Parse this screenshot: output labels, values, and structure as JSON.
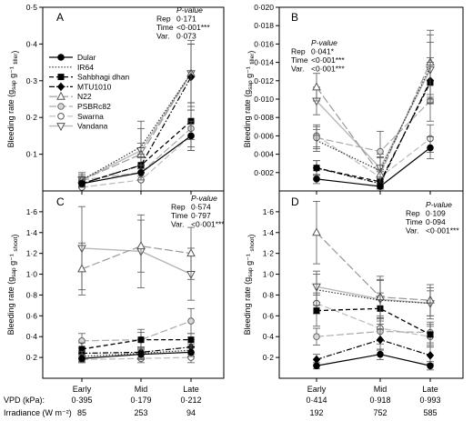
{
  "figure": {
    "row_labels": {
      "vpd": "VPD (kPa):",
      "irradiance": "Irradiance (W m⁻²)"
    },
    "vpd_values": [
      "0·395",
      "0·179",
      "0·212",
      "0·414",
      "0·918",
      "0·993"
    ],
    "irradiance_values": [
      "85",
      "253",
      "94",
      "192",
      "752",
      "585"
    ]
  },
  "legend": {
    "entries": [
      {
        "name": "Dular",
        "marker": "circle-filled",
        "dash": "solid"
      },
      {
        "name": "IR64",
        "marker": "none",
        "dash": "dotted"
      },
      {
        "name": "Sahbhagi dhan",
        "marker": "square-filled",
        "dash": "dashed"
      },
      {
        "name": "MTU1010",
        "marker": "diamond-filled",
        "dash": "dashdot"
      },
      {
        "name": "N22",
        "marker": "triangle-open",
        "dash": "longdash"
      },
      {
        "name": "PSBRc82",
        "marker": "circle-dotted",
        "dash": "longdash"
      },
      {
        "name": "Swarna",
        "marker": "circle-open",
        "dash": "longdash"
      },
      {
        "name": "Vandana",
        "marker": "triangle-down-open",
        "dash": "solid-light"
      }
    ]
  },
  "chart_data": [
    {
      "panel": "A",
      "type": "line",
      "ylabel": "Bleeding rate (g_sap g⁻¹ _tiller)",
      "ylim": [
        0,
        0.5
      ],
      "yticks": [
        "0·1",
        "0·2",
        "0·3",
        "0·4",
        "0·5"
      ],
      "categories": [
        "Early",
        "Mid",
        "Late"
      ],
      "stats": [
        [
          "P-value",
          ""
        ],
        [
          "Rep",
          "0·171"
        ],
        [
          "Time",
          "<0·001***"
        ],
        [
          "Var.",
          "0·073"
        ]
      ],
      "series": [
        {
          "name": "Dular",
          "values": [
            0.02,
            0.05,
            0.15
          ]
        },
        {
          "name": "IR64",
          "values": [
            0.03,
            0.12,
            0.32
          ]
        },
        {
          "name": "Sahbhagi dhan",
          "values": [
            0.02,
            0.07,
            0.19
          ]
        },
        {
          "name": "MTU1010",
          "values": [
            0.02,
            0.07,
            0.31
          ]
        },
        {
          "name": "N22",
          "values": [
            0.03,
            0.1,
            0.32
          ]
        },
        {
          "name": "PSBRc82",
          "values": [
            0.03,
            0.05,
            0.17
          ]
        },
        {
          "name": "Swarna",
          "values": [
            0.01,
            0.03,
            0.15
          ]
        },
        {
          "name": "Vandana",
          "values": [
            0.03,
            0.11,
            0.32
          ]
        }
      ],
      "errors": [
        [
          0.008,
          0.02,
          0.04
        ],
        [
          0.015,
          0.05,
          0.08
        ],
        [
          0.01,
          0.03,
          0.05
        ],
        [
          0.01,
          0.02,
          0.09
        ],
        [
          0.01,
          0.03,
          0.08
        ],
        [
          0.01,
          0.02,
          0.05
        ],
        [
          0.01,
          0.03,
          0.04
        ],
        [
          0.02,
          0.08,
          0.09
        ]
      ]
    },
    {
      "panel": "B",
      "type": "line",
      "ylabel": "Bleeding rate (g_sap g⁻¹ _tiller)",
      "ylim": [
        0,
        0.02
      ],
      "yticks": [
        "0·002",
        "0·004",
        "0·006",
        "0·008",
        "0·010",
        "0·012",
        "0·014",
        "0·016",
        "0·018",
        "0·020"
      ],
      "categories": [
        "Early",
        "Mid",
        "Late"
      ],
      "stats": [
        [
          "P-value",
          ""
        ],
        [
          "Rep",
          "0·041*"
        ],
        [
          "Time",
          "<0·001***"
        ],
        [
          "Var.",
          "<0·001***"
        ]
      ],
      "series": [
        {
          "name": "Dular",
          "values": [
            0.0013,
            0.0005,
            0.0047
          ]
        },
        {
          "name": "IR64",
          "values": [
            0.0055,
            0.0022,
            0.0135
          ]
        },
        {
          "name": "Sahbhagi dhan",
          "values": [
            0.0025,
            0.001,
            0.0118
          ]
        },
        {
          "name": "MTU1010",
          "values": [
            0.0025,
            0.0008,
            0.012
          ]
        },
        {
          "name": "N22",
          "values": [
            0.0113,
            0.0018,
            0.014
          ]
        },
        {
          "name": "PSBRc82",
          "values": [
            0.0058,
            0.0043,
            0.0098
          ]
        },
        {
          "name": "Swarna",
          "values": [
            0.006,
            0.0015,
            0.0057
          ]
        },
        {
          "name": "Vandana",
          "values": [
            0.0098,
            0.0025,
            0.0132
          ]
        }
      ],
      "errors": [
        [
          0.0005,
          0.0003,
          0.0012
        ],
        [
          0.0012,
          0.0015,
          0.0035
        ],
        [
          0.0008,
          0.0005,
          0.0022
        ],
        [
          0.0008,
          0.0005,
          0.0025
        ],
        [
          0.0015,
          0.0018,
          0.0035
        ],
        [
          0.0012,
          0.0022,
          0.0022
        ],
        [
          0.0012,
          0.0008,
          0.0015
        ],
        [
          0.0015,
          0.0015,
          0.003
        ]
      ]
    },
    {
      "panel": "C",
      "type": "line",
      "ylabel": "Bleeding rate (g_sap g⁻¹ _shoot)",
      "ylim": [
        0,
        1.8
      ],
      "yticks": [
        "0·2",
        "0·4",
        "0·6",
        "0·8",
        "1·0",
        "1·2",
        "1·4",
        "1·6"
      ],
      "categories": [
        "Early",
        "Mid",
        "Late"
      ],
      "stats": [
        [
          "P-value",
          ""
        ],
        [
          "Rep",
          "0·574"
        ],
        [
          "Time",
          "0·797"
        ],
        [
          "Var.",
          "<0·001***"
        ]
      ],
      "series": [
        {
          "name": "Dular",
          "values": [
            0.19,
            0.23,
            0.25
          ]
        },
        {
          "name": "IR64",
          "values": [
            0.21,
            0.24,
            0.27
          ]
        },
        {
          "name": "Sahbhagi dhan",
          "values": [
            0.28,
            0.37,
            0.37
          ]
        },
        {
          "name": "MTU1010",
          "values": [
            0.24,
            0.25,
            0.3
          ]
        },
        {
          "name": "N22",
          "values": [
            1.05,
            1.27,
            1.2
          ]
        },
        {
          "name": "PSBRc82",
          "values": [
            0.36,
            0.37,
            0.55
          ]
        },
        {
          "name": "Swarna",
          "values": [
            0.18,
            0.19,
            0.2
          ]
        },
        {
          "name": "Vandana",
          "values": [
            1.25,
            1.22,
            1.0
          ]
        }
      ],
      "errors": [
        [
          0.04,
          0.05,
          0.04
        ],
        [
          0.05,
          0.05,
          0.06
        ],
        [
          0.06,
          0.07,
          0.06
        ],
        [
          0.05,
          0.05,
          0.07
        ],
        [
          0.25,
          0.25,
          0.25
        ],
        [
          0.07,
          0.1,
          0.12
        ],
        [
          0.03,
          0.04,
          0.05
        ],
        [
          0.4,
          0.35,
          0.25
        ]
      ]
    },
    {
      "panel": "D",
      "type": "line",
      "ylabel": "Bleeding rate (g_sap g⁻¹ _shoot)",
      "ylim": [
        0,
        1.8
      ],
      "yticks": [
        "0·2",
        "0·4",
        "0·6",
        "0·8",
        "1·0",
        "1·2",
        "1·4",
        "1·6"
      ],
      "categories": [
        "Early",
        "Mid",
        "Late"
      ],
      "stats": [
        [
          "P-value",
          ""
        ],
        [
          "Rep",
          "0·109"
        ],
        [
          "Time",
          "0·094"
        ],
        [
          "Var.",
          "<0·001***"
        ]
      ],
      "series": [
        {
          "name": "Dular",
          "values": [
            0.12,
            0.23,
            0.12
          ]
        },
        {
          "name": "IR64",
          "values": [
            0.85,
            0.75,
            0.72
          ]
        },
        {
          "name": "Sahbhagi dhan",
          "values": [
            0.65,
            0.67,
            0.42
          ]
        },
        {
          "name": "MTU1010",
          "values": [
            0.18,
            0.37,
            0.22
          ]
        },
        {
          "name": "N22",
          "values": [
            1.4,
            0.78,
            0.75
          ]
        },
        {
          "name": "PSBRc82",
          "values": [
            0.4,
            0.45,
            0.44
          ]
        },
        {
          "name": "Swarna",
          "values": [
            0.72,
            0.48,
            0.4
          ]
        },
        {
          "name": "Vandana",
          "values": [
            0.88,
            0.76,
            0.72
          ]
        }
      ],
      "errors": [
        [
          0.03,
          0.05,
          0.04
        ],
        [
          0.15,
          0.2,
          0.12
        ],
        [
          0.15,
          0.15,
          0.1
        ],
        [
          0.05,
          0.1,
          0.08
        ],
        [
          0.3,
          0.2,
          0.15
        ],
        [
          0.08,
          0.12,
          0.1
        ],
        [
          0.1,
          0.12,
          0.1
        ],
        [
          0.15,
          0.18,
          0.15
        ]
      ]
    }
  ]
}
